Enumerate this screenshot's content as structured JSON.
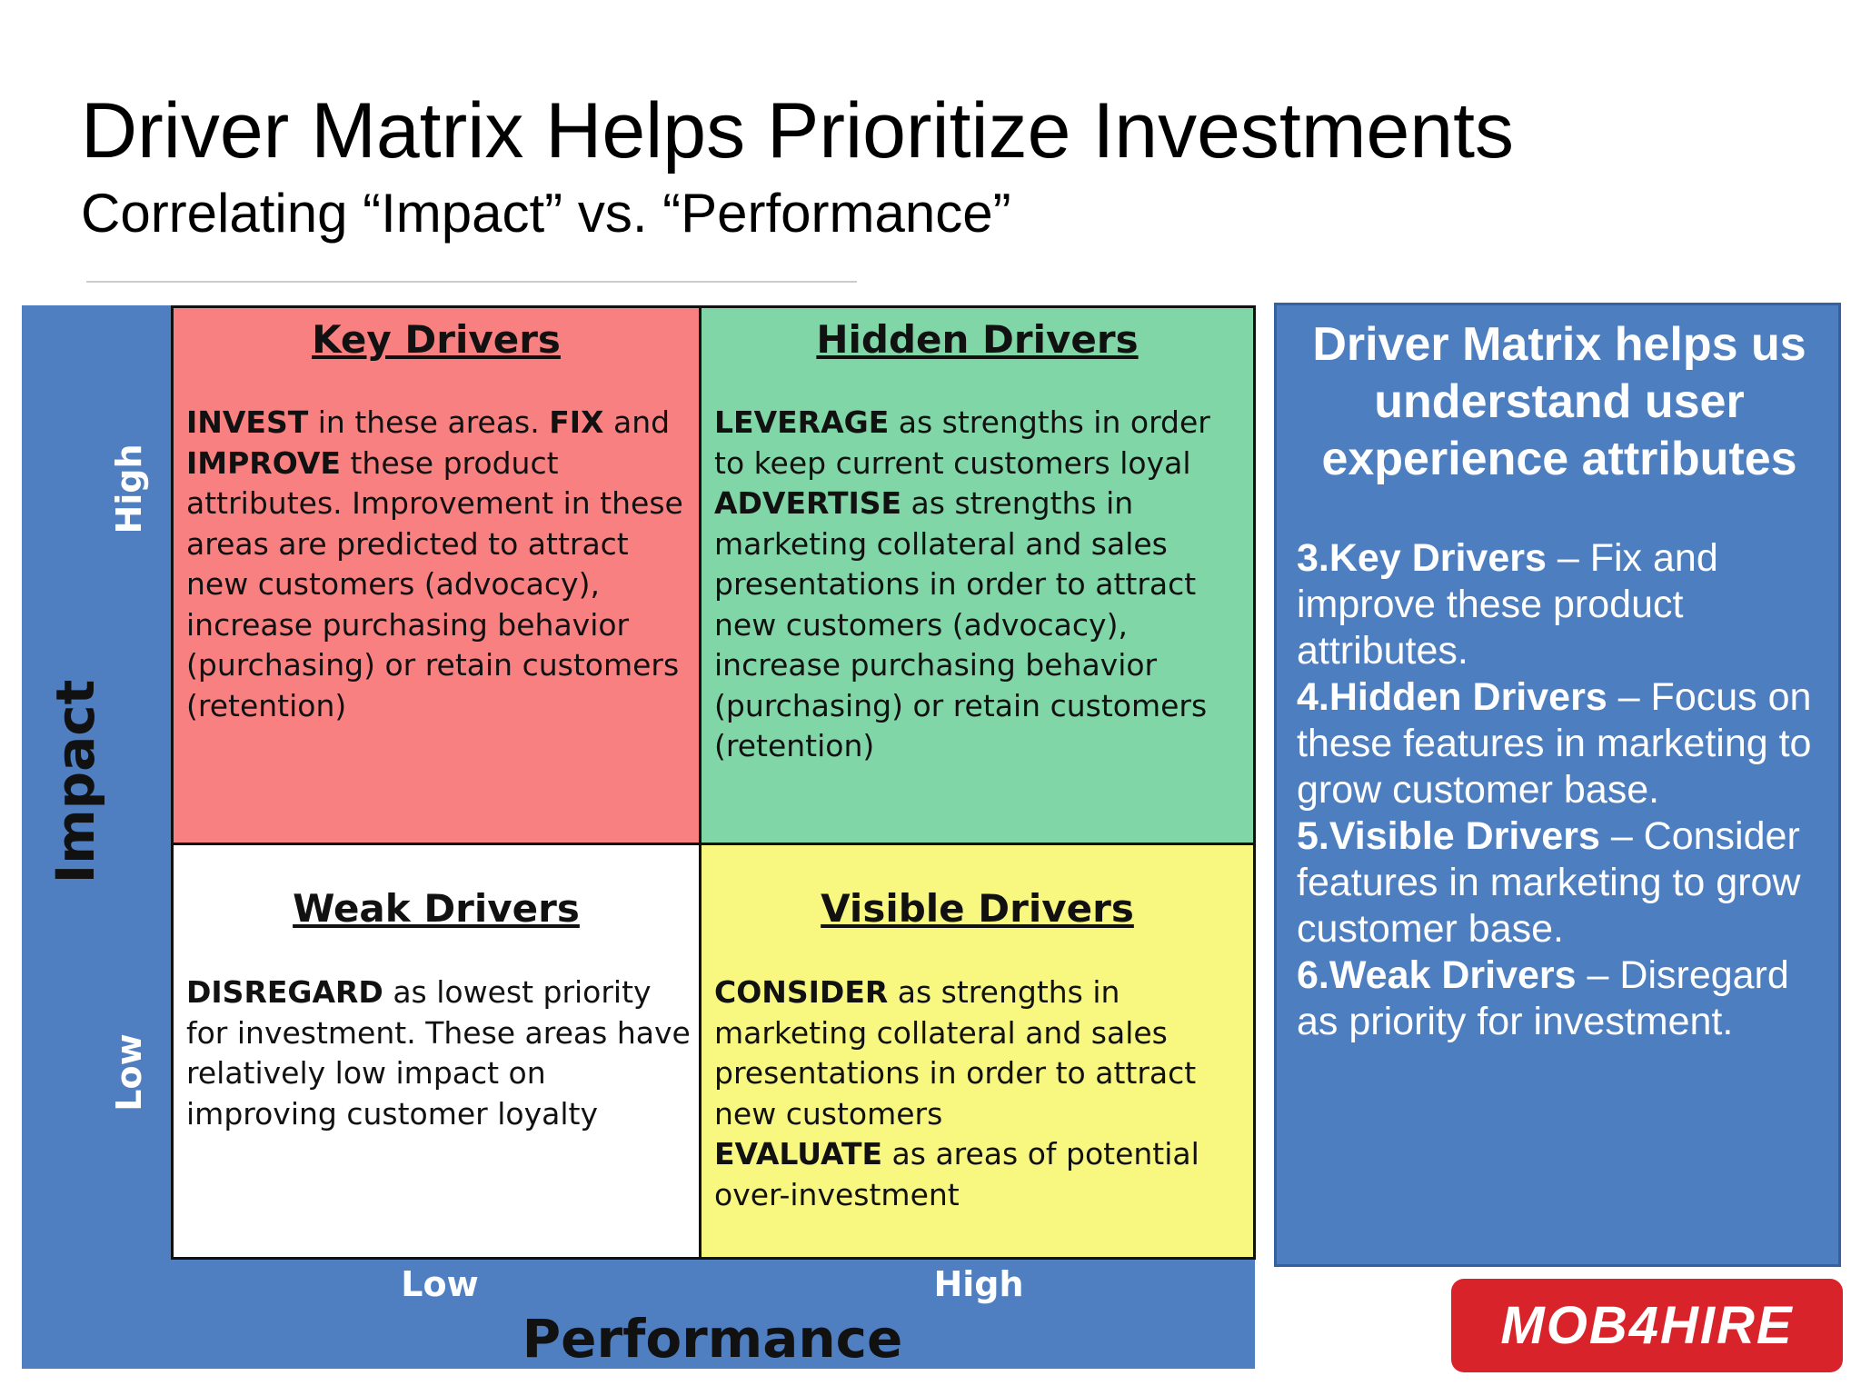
{
  "header": {
    "title": "Driver Matrix Helps Prioritize Investments",
    "subtitle": "Correlating “Impact” vs. “Performance”"
  },
  "matrix": {
    "y_axis": {
      "label": "Impact",
      "high": "High",
      "low": "Low"
    },
    "x_axis": {
      "label": "Performance",
      "low": "Low",
      "high": "High"
    },
    "quadrants": [
      {
        "title": "Key Drivers",
        "color": "#f98080",
        "paragraphs": [
          [
            {
              "text": "INVEST",
              "bold": true
            },
            {
              "text": " in these areas. "
            },
            {
              "text": "FIX",
              "bold": true
            },
            {
              "text": " and "
            },
            {
              "text": "IMPROVE",
              "bold": true
            },
            {
              "text": " these product attributes. Improvement in these areas are predicted to attract new customers (advocacy), increase purchasing behavior (purchasing) or retain customers (retention)"
            }
          ]
        ]
      },
      {
        "title": "Hidden Drivers",
        "color": "#80d6a6",
        "paragraphs": [
          [
            {
              "text": "LEVERAGE",
              "bold": true
            },
            {
              "text": " as strengths in order to keep current customers loyal"
            }
          ],
          [
            {
              "text": "ADVERTISE",
              "bold": true
            },
            {
              "text": " as strengths in marketing collateral and sales presentations in order to attract new customers (advocacy), increase purchasing behavior (purchasing) or retain customers (retention)"
            }
          ]
        ]
      },
      {
        "title": "Weak Drivers",
        "color": "#ffffff",
        "paragraphs": [
          [
            {
              "text": "DISREGARD",
              "bold": true
            },
            {
              "text": " as lowest priority for investment. These areas have relatively low impact on improving customer loyalty"
            }
          ]
        ]
      },
      {
        "title": "Visible Drivers",
        "color": "#f8f880",
        "paragraphs": [
          [
            {
              "text": "CONSIDER",
              "bold": true
            },
            {
              "text": " as strengths in marketing collateral and sales presentations in order to attract new customers"
            }
          ],
          [
            {
              "text": "EVALUATE",
              "bold": true
            },
            {
              "text": " as areas of potential over-investment"
            }
          ]
        ]
      }
    ]
  },
  "sidebar": {
    "title": "Driver Matrix helps us understand user experience attributes",
    "items": [
      {
        "heading": "3.Key Drivers",
        "text": "– Fix and improve these product attributes."
      },
      {
        "heading": "4.Hidden Drivers",
        "text": "– Focus on these features in marketing to grow customer base."
      },
      {
        "heading": "5.Visible Drivers",
        "text": "– Consider features in marketing to grow customer base."
      },
      {
        "heading": "6.Weak Drivers",
        "text": "– Disregard as priority for investment."
      }
    ]
  },
  "logo": "MOB4HIRE"
}
